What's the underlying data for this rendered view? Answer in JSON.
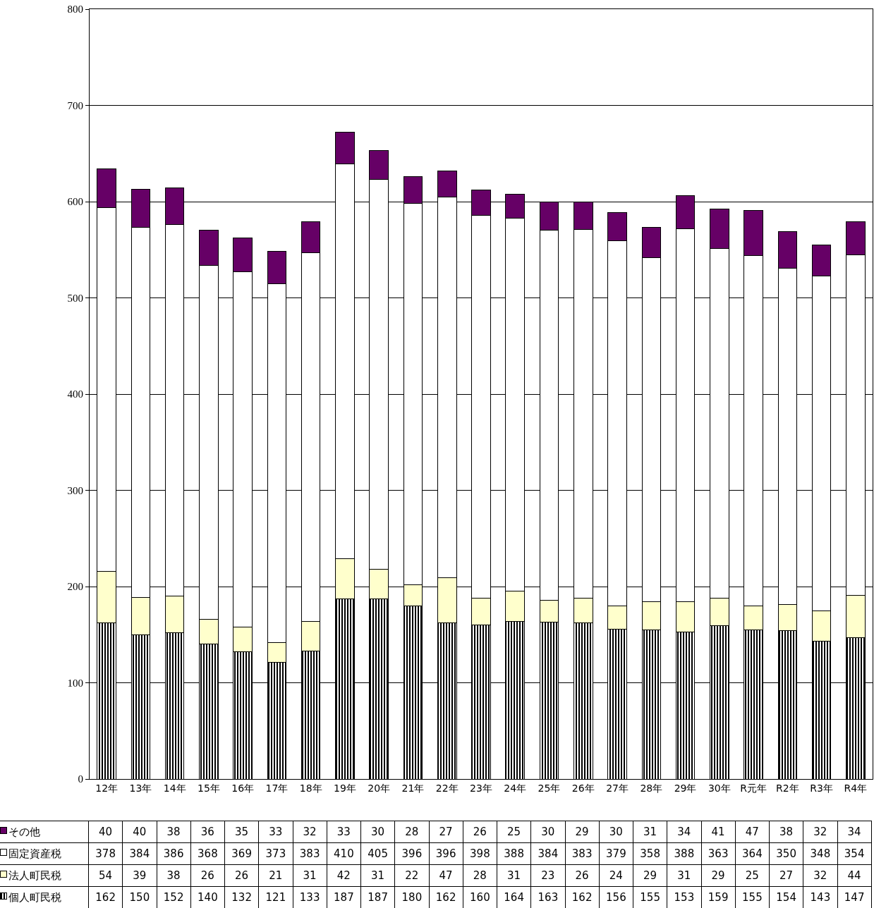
{
  "chart_data": {
    "type": "bar",
    "stacked": true,
    "categories": [
      "12年",
      "13年",
      "14年",
      "15年",
      "16年",
      "17年",
      "18年",
      "19年",
      "20年",
      "21年",
      "22年",
      "23年",
      "24年",
      "25年",
      "26年",
      "27年",
      "28年",
      "29年",
      "30年",
      "R元年",
      "R2年",
      "R3年",
      "R4年"
    ],
    "series": [
      {
        "name": "個人町民税",
        "color": "#000000",
        "values": [
          162,
          150,
          152,
          140,
          132,
          121,
          133,
          187,
          187,
          180,
          162,
          160,
          164,
          163,
          162,
          156,
          155,
          153,
          159,
          155,
          154,
          143,
          147
        ]
      },
      {
        "name": "法人町民税",
        "color": "#ffffcc",
        "values": [
          54,
          39,
          38,
          26,
          26,
          21,
          31,
          42,
          31,
          22,
          47,
          28,
          31,
          23,
          26,
          24,
          29,
          31,
          29,
          25,
          27,
          32,
          44
        ]
      },
      {
        "name": "固定資産税",
        "color": "#ffffff",
        "values": [
          378,
          384,
          386,
          368,
          369,
          373,
          383,
          410,
          405,
          396,
          396,
          398,
          388,
          384,
          383,
          379,
          358,
          388,
          363,
          364,
          350,
          348,
          354
        ]
      },
      {
        "name": "その他",
        "color": "#660066",
        "values": [
          40,
          40,
          38,
          36,
          35,
          33,
          32,
          33,
          30,
          28,
          27,
          26,
          25,
          30,
          29,
          30,
          31,
          34,
          41,
          47,
          38,
          32,
          34
        ]
      }
    ],
    "ylim": [
      0,
      800
    ],
    "yticks": [
      0,
      100,
      200,
      300,
      400,
      500,
      600,
      700,
      800
    ],
    "grid": "y",
    "legend": "bottom",
    "data_labels": true
  }
}
